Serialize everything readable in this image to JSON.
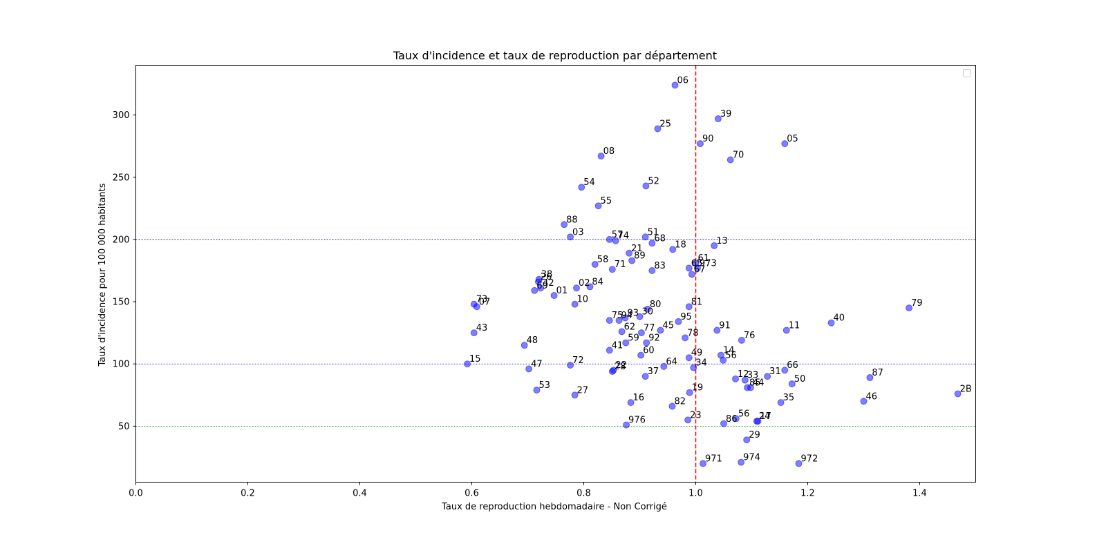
{
  "chart_data": {
    "type": "scatter",
    "title": "Taux d'incidence et taux de reproduction par département",
    "xlabel": "Taux de reproduction hebdomadaire - Non Corrigé",
    "ylabel": "Taux d'incidence pour 100 000 habitants",
    "xlim": [
      0,
      1.5
    ],
    "ylim": [
      5,
      340
    ],
    "xticks": [
      0.0,
      0.2,
      0.4,
      0.6,
      0.8,
      1.0,
      1.2,
      1.4
    ],
    "xtick_labels": [
      "0.0",
      "0.2",
      "0.4",
      "0.6",
      "0.8",
      "1.0",
      "1.2",
      "1.4"
    ],
    "yticks": [
      50,
      100,
      150,
      200,
      250,
      300
    ],
    "ytick_labels": [
      "50",
      "100",
      "150",
      "200",
      "250",
      "300"
    ],
    "grid": false,
    "legend": "top-right (empty)",
    "point_color": "#0000ff",
    "point_alpha": 0.5,
    "reference_lines": [
      {
        "orientation": "vertical",
        "value": 1.0,
        "color": "#ff0000",
        "style": "dashed"
      },
      {
        "orientation": "horizontal",
        "value": 200,
        "color": "#0000ff",
        "style": "dotted"
      },
      {
        "orientation": "horizontal",
        "value": 100,
        "color": "#0000ff",
        "style": "dotted"
      },
      {
        "orientation": "horizontal",
        "value": 50,
        "color": "#008000",
        "style": "dotted"
      }
    ],
    "points": [
      {
        "label": "06",
        "x": 0.963,
        "y": 324
      },
      {
        "label": "39",
        "x": 1.04,
        "y": 297
      },
      {
        "label": "25",
        "x": 0.932,
        "y": 289
      },
      {
        "label": "90",
        "x": 1.008,
        "y": 277
      },
      {
        "label": "05",
        "x": 1.159,
        "y": 277
      },
      {
        "label": "08",
        "x": 0.831,
        "y": 267
      },
      {
        "label": "70",
        "x": 1.062,
        "y": 264
      },
      {
        "label": "52",
        "x": 0.911,
        "y": 243
      },
      {
        "label": "54",
        "x": 0.796,
        "y": 242
      },
      {
        "label": "55",
        "x": 0.826,
        "y": 227
      },
      {
        "label": "88",
        "x": 0.765,
        "y": 212
      },
      {
        "label": "03",
        "x": 0.776,
        "y": 202
      },
      {
        "label": "57",
        "x": 0.846,
        "y": 200
      },
      {
        "label": "74",
        "x": 0.857,
        "y": 199
      },
      {
        "label": "51",
        "x": 0.91,
        "y": 202
      },
      {
        "label": "68",
        "x": 0.922,
        "y": 197
      },
      {
        "label": "13",
        "x": 1.033,
        "y": 195
      },
      {
        "label": "18",
        "x": 0.959,
        "y": 192
      },
      {
        "label": "21",
        "x": 0.881,
        "y": 189
      },
      {
        "label": "89",
        "x": 0.886,
        "y": 183
      },
      {
        "label": "61",
        "x": 1.0,
        "y": 181
      },
      {
        "label": "58",
        "x": 0.82,
        "y": 180
      },
      {
        "label": "65",
        "x": 0.988,
        "y": 177
      },
      {
        "label": "973",
        "x": 1.003,
        "y": 177
      },
      {
        "label": "71",
        "x": 0.851,
        "y": 176
      },
      {
        "label": "83",
        "x": 0.922,
        "y": 175
      },
      {
        "label": "67",
        "x": 0.993,
        "y": 172
      },
      {
        "label": "38",
        "x": 0.72,
        "y": 168
      },
      {
        "label": "26",
        "x": 0.719,
        "y": 166
      },
      {
        "label": "02",
        "x": 0.787,
        "y": 161
      },
      {
        "label": "84",
        "x": 0.811,
        "y": 162
      },
      {
        "label": "42",
        "x": 0.723,
        "y": 161
      },
      {
        "label": "69",
        "x": 0.712,
        "y": 159
      },
      {
        "label": "01",
        "x": 0.747,
        "y": 155
      },
      {
        "label": "73",
        "x": 0.604,
        "y": 148
      },
      {
        "label": "07",
        "x": 0.609,
        "y": 146
      },
      {
        "label": "10",
        "x": 0.784,
        "y": 148
      },
      {
        "label": "80",
        "x": 0.914,
        "y": 144
      },
      {
        "label": "81",
        "x": 0.988,
        "y": 146
      },
      {
        "label": "79",
        "x": 1.381,
        "y": 145
      },
      {
        "label": "30",
        "x": 0.9,
        "y": 138
      },
      {
        "label": "93",
        "x": 0.874,
        "y": 137
      },
      {
        "label": "75",
        "x": 0.846,
        "y": 135
      },
      {
        "label": "94",
        "x": 0.863,
        "y": 135
      },
      {
        "label": "95",
        "x": 0.969,
        "y": 134
      },
      {
        "label": "40",
        "x": 1.242,
        "y": 133
      },
      {
        "label": "62",
        "x": 0.868,
        "y": 126
      },
      {
        "label": "77",
        "x": 0.903,
        "y": 125
      },
      {
        "label": "45",
        "x": 0.937,
        "y": 127
      },
      {
        "label": "91",
        "x": 1.038,
        "y": 127
      },
      {
        "label": "11",
        "x": 1.162,
        "y": 127
      },
      {
        "label": "43",
        "x": 0.604,
        "y": 125
      },
      {
        "label": "78",
        "x": 0.981,
        "y": 121
      },
      {
        "label": "76",
        "x": 1.082,
        "y": 119
      },
      {
        "label": "59",
        "x": 0.875,
        "y": 117
      },
      {
        "label": "92",
        "x": 0.912,
        "y": 117
      },
      {
        "label": "48",
        "x": 0.694,
        "y": 115
      },
      {
        "label": "41",
        "x": 0.846,
        "y": 111
      },
      {
        "label": "60",
        "x": 0.902,
        "y": 107
      },
      {
        "label": "14",
        "x": 1.045,
        "y": 107
      },
      {
        "label": "49",
        "x": 0.988,
        "y": 105
      },
      {
        "label": "56",
        "x": 1.049,
        "y": 103
      },
      {
        "label": "15",
        "x": 0.592,
        "y": 100
      },
      {
        "label": "72",
        "x": 0.776,
        "y": 99
      },
      {
        "label": "47",
        "x": 0.702,
        "y": 96
      },
      {
        "label": "64",
        "x": 0.943,
        "y": 98
      },
      {
        "label": "34",
        "x": 0.996,
        "y": 97
      },
      {
        "label": "66",
        "x": 1.159,
        "y": 95
      },
      {
        "label": "22",
        "x": 0.853,
        "y": 95
      },
      {
        "label": "28",
        "x": 0.851,
        "y": 94
      },
      {
        "label": "37",
        "x": 0.91,
        "y": 90
      },
      {
        "label": "31",
        "x": 1.128,
        "y": 90
      },
      {
        "label": "87",
        "x": 1.311,
        "y": 89
      },
      {
        "label": "12",
        "x": 1.071,
        "y": 88
      },
      {
        "label": "33",
        "x": 1.088,
        "y": 87
      },
      {
        "label": "50",
        "x": 1.172,
        "y": 84
      },
      {
        "label": "85",
        "x": 1.092,
        "y": 81
      },
      {
        "label": "44",
        "x": 1.098,
        "y": 81
      },
      {
        "label": "53",
        "x": 0.716,
        "y": 79
      },
      {
        "label": "19",
        "x": 0.989,
        "y": 77
      },
      {
        "label": "2B",
        "x": 1.468,
        "y": 76
      },
      {
        "label": "27",
        "x": 0.784,
        "y": 75
      },
      {
        "label": "16",
        "x": 0.884,
        "y": 69
      },
      {
        "label": "35",
        "x": 1.152,
        "y": 69
      },
      {
        "label": "46",
        "x": 1.3,
        "y": 70
      },
      {
        "label": "82",
        "x": 0.958,
        "y": 66
      },
      {
        "label": "56",
        "x": 1.072,
        "y": 56
      },
      {
        "label": "24",
        "x": 1.109,
        "y": 54
      },
      {
        "label": "17",
        "x": 1.111,
        "y": 54
      },
      {
        "label": "23",
        "x": 0.986,
        "y": 55
      },
      {
        "label": "86",
        "x": 1.05,
        "y": 52
      },
      {
        "label": "976",
        "x": 0.876,
        "y": 51
      },
      {
        "label": "29",
        "x": 1.091,
        "y": 39
      },
      {
        "label": "971",
        "x": 1.013,
        "y": 20
      },
      {
        "label": "974",
        "x": 1.081,
        "y": 21
      },
      {
        "label": "972",
        "x": 1.184,
        "y": 20
      }
    ]
  }
}
